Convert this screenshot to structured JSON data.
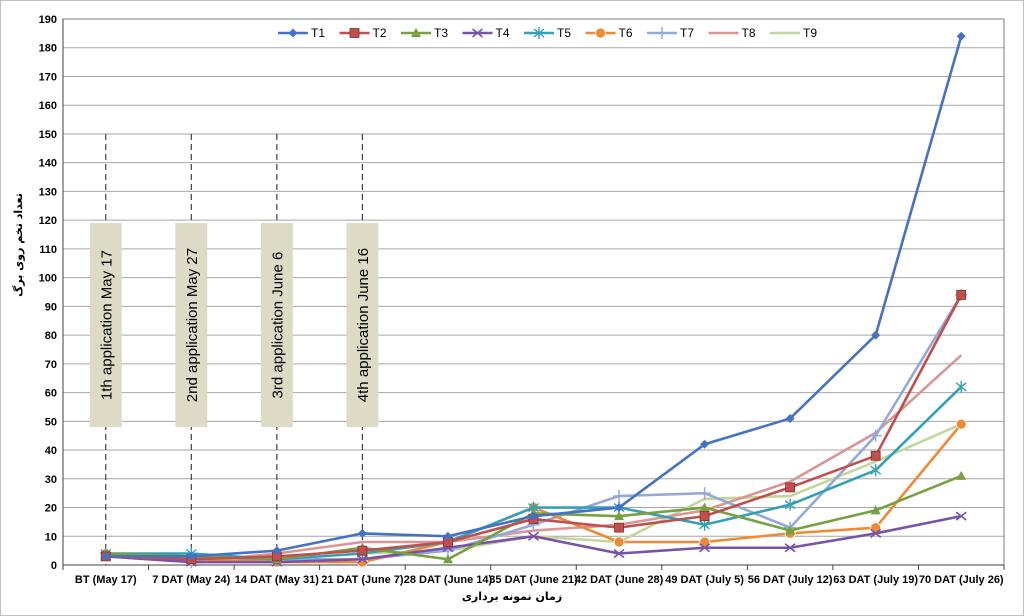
{
  "chart_data": {
    "type": "line",
    "categories": [
      "BT (May 17)",
      "7 DAT (May 24)",
      "14 DAT (May 31)",
      "21 DAT (June 7)",
      "28 DAT (June 14)",
      "35 DAT (June 21)",
      "42 DAT (June 28)",
      "49 DAT (July 5)",
      "56 DAT (July 12)",
      "63 DAT (July 19)",
      "70 DAT (July 26)"
    ],
    "ylabel": "تعداد تخم روی برگ",
    "xlabel": "زمان نمونه برداری",
    "ylim": [
      0,
      190
    ],
    "yticks": [
      0,
      10,
      20,
      30,
      40,
      50,
      60,
      70,
      80,
      90,
      100,
      110,
      120,
      130,
      140,
      150,
      160,
      170,
      180,
      190
    ],
    "grid": true,
    "legend_position": "top",
    "series": [
      {
        "name": "T1",
        "color": "#4472C4",
        "marker": "diamond",
        "values": [
          3,
          3,
          5,
          11,
          10,
          17,
          20,
          42,
          51,
          80,
          184
        ]
      },
      {
        "name": "T2",
        "color": "#C0504D",
        "marker": "square",
        "values": [
          3,
          2,
          3,
          5,
          8,
          16,
          13,
          17,
          27,
          38,
          94
        ]
      },
      {
        "name": "T3",
        "color": "#77A040",
        "marker": "triangle",
        "values": [
          4,
          3,
          2,
          6,
          2,
          18,
          17,
          20,
          12,
          19,
          31
        ]
      },
      {
        "name": "T4",
        "color": "#7851A9",
        "marker": "x",
        "values": [
          3,
          1,
          1,
          2,
          6,
          10,
          4,
          6,
          6,
          11,
          17
        ]
      },
      {
        "name": "T5",
        "color": "#34A0B8",
        "marker": "star",
        "values": [
          4,
          4,
          2,
          4,
          8,
          20,
          20,
          14,
          21,
          33,
          62
        ]
      },
      {
        "name": "T6",
        "color": "#F08A32",
        "marker": "circle",
        "values": [
          4,
          2,
          1,
          1,
          8,
          20,
          8,
          8,
          11,
          13,
          49
        ]
      },
      {
        "name": "T7",
        "color": "#95A9D8",
        "marker": "plus",
        "values": [
          4,
          1,
          2,
          2,
          5,
          14,
          24,
          25,
          13,
          45,
          94
        ]
      },
      {
        "name": "T8",
        "color": "#D99694",
        "marker": "none",
        "values": [
          3,
          1,
          4,
          8,
          8,
          12,
          14,
          19,
          29,
          46,
          73
        ]
      },
      {
        "name": "T9",
        "color": "#C3D69B",
        "marker": "none",
        "values": [
          4,
          1,
          2,
          4,
          5,
          10,
          8,
          23,
          24,
          36,
          49
        ]
      }
    ],
    "applications": [
      {
        "label": "1th  application May 17",
        "category_index": 0
      },
      {
        "label": "2nd  application May 27",
        "category_index": 1
      },
      {
        "label": "3rd application June 6",
        "category_index": 2
      },
      {
        "label": "4th application June 16",
        "category_index": 3
      }
    ]
  }
}
